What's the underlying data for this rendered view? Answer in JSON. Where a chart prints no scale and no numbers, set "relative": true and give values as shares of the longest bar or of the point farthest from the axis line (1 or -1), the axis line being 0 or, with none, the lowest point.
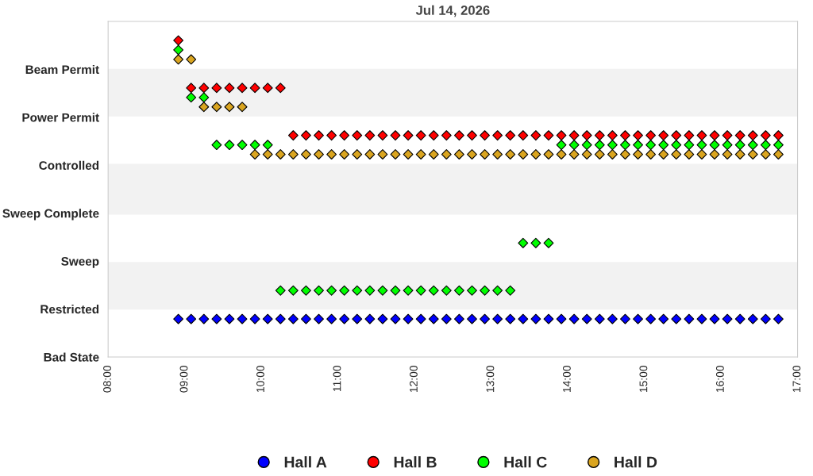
{
  "chart_data": {
    "type": "scatter",
    "title": "Jul 14, 2026",
    "relative": true,
    "x": [
      "2026-07-14T08:55",
      "2026-07-14T09:05",
      "2026-07-14T09:15",
      "2026-07-14T09:25",
      "2026-07-14T09:35",
      "2026-07-14T09:45",
      "2026-07-14T09:55",
      "2026-07-14T10:05",
      "2026-07-14T10:15",
      "2026-07-14T10:25",
      "2026-07-14T10:35",
      "2026-07-14T10:45",
      "2026-07-14T10:55",
      "2026-07-14T11:05",
      "2026-07-14T11:15",
      "2026-07-14T11:25",
      "2026-07-14T11:35",
      "2026-07-14T11:45",
      "2026-07-14T11:55",
      "2026-07-14T12:05",
      "2026-07-14T12:15",
      "2026-07-14T12:25",
      "2026-07-14T12:35",
      "2026-07-14T12:45",
      "2026-07-14T12:55",
      "2026-07-14T13:05",
      "2026-07-14T13:15",
      "2026-07-14T13:25",
      "2026-07-14T13:35",
      "2026-07-14T13:45",
      "2026-07-14T13:55",
      "2026-07-14T14:05",
      "2026-07-14T14:15",
      "2026-07-14T14:25",
      "2026-07-14T14:35",
      "2026-07-14T14:45",
      "2026-07-14T14:55",
      "2026-07-14T15:05",
      "2026-07-14T15:15",
      "2026-07-14T15:25",
      "2026-07-14T15:35",
      "2026-07-14T15:45",
      "2026-07-14T15:55",
      "2026-07-14T16:05",
      "2026-07-14T16:15",
      "2026-07-14T16:25",
      "2026-07-14T16:35",
      "2026-07-14T16:45"
    ],
    "y_categories": [
      "Beam Permit",
      "Power Permit",
      "Controlled",
      "Sweep Complete",
      "Sweep",
      "Restricted",
      "Bad State"
    ],
    "series": [
      {
        "name": "Hall A",
        "color": "#0000ff",
        "values": [
          0.12,
          0.12,
          0.12,
          0.12,
          0.12,
          0.12,
          0.12,
          0.12,
          0.12,
          0.12,
          0.12,
          0.12,
          0.12,
          0.12,
          0.12,
          0.12,
          0.12,
          0.12,
          0.12,
          0.12,
          0.12,
          0.12,
          0.12,
          0.12,
          0.12,
          0.12,
          0.12,
          0.12,
          0.12,
          0.12,
          0.12,
          0.12,
          0.12,
          0.12,
          0.12,
          0.12,
          0.12,
          0.12,
          0.12,
          0.12,
          0.12,
          0.12,
          0.12,
          0.12,
          0.12,
          0.12,
          0.12,
          0.12
        ]
      },
      {
        "name": "Hall B",
        "color": "#ff0000",
        "values": [
          1,
          0.85,
          0.85,
          0.85,
          0.85,
          0.85,
          0.85,
          0.85,
          0.85,
          0.7,
          0.7,
          0.7,
          0.7,
          0.7,
          0.7,
          0.7,
          0.7,
          0.7,
          0.7,
          0.7,
          0.7,
          0.7,
          0.7,
          0.7,
          0.7,
          0.7,
          0.7,
          0.7,
          0.7,
          0.7,
          0.7,
          0.7,
          0.7,
          0.7,
          0.7,
          0.7,
          0.7,
          0.7,
          0.7,
          0.7,
          0.7,
          0.7,
          0.7,
          0.7,
          0.7,
          0.7,
          0.7,
          0.7
        ]
      },
      {
        "name": "Hall C",
        "color": "#00ff00",
        "values": [
          0.97,
          0.82,
          0.82,
          0.67,
          0.67,
          0.67,
          0.67,
          0.67,
          0.21,
          0.21,
          0.21,
          0.21,
          0.21,
          0.21,
          0.21,
          0.21,
          0.21,
          0.21,
          0.21,
          0.21,
          0.21,
          0.21,
          0.21,
          0.21,
          0.21,
          0.21,
          0.21,
          0.36,
          0.36,
          0.36,
          0.67,
          0.67,
          0.67,
          0.67,
          0.67,
          0.67,
          0.67,
          0.67,
          0.67,
          0.67,
          0.67,
          0.67,
          0.67,
          0.67,
          0.67,
          0.67,
          0.67,
          0.67
        ]
      },
      {
        "name": "Hall D",
        "color": "#daa520",
        "values": [
          0.94,
          0.94,
          0.79,
          0.79,
          0.79,
          0.79,
          0.64,
          0.64,
          0.64,
          0.64,
          0.64,
          0.64,
          0.64,
          0.64,
          0.64,
          0.64,
          0.64,
          0.64,
          0.64,
          0.64,
          0.64,
          0.64,
          0.64,
          0.64,
          0.64,
          0.64,
          0.64,
          0.64,
          0.64,
          0.64,
          0.64,
          0.64,
          0.64,
          0.64,
          0.64,
          0.64,
          0.64,
          0.64,
          0.64,
          0.64,
          0.64,
          0.64,
          0.64,
          0.64,
          0.64,
          0.64,
          0.64,
          0.64
        ]
      }
    ],
    "xlim": [
      "2026-07-14T08:00",
      "2026-07-14T17:00"
    ],
    "xticks": [
      {
        "value": "2026-07-14T08:00",
        "label": "08:00"
      },
      {
        "value": "2026-07-14T09:00",
        "label": "09:00"
      },
      {
        "value": "2026-07-14T10:00",
        "label": "10:00"
      },
      {
        "value": "2026-07-14T11:00",
        "label": "11:00"
      },
      {
        "value": "2026-07-14T12:00",
        "label": "12:00"
      },
      {
        "value": "2026-07-14T13:00",
        "label": "13:00"
      },
      {
        "value": "2026-07-14T14:00",
        "label": "14:00"
      },
      {
        "value": "2026-07-14T15:00",
        "label": "15:00"
      },
      {
        "value": "2026-07-14T16:00",
        "label": "16:00"
      },
      {
        "value": "2026-07-14T17:00",
        "label": "17:00"
      }
    ],
    "bands": [
      {
        "axis": "y",
        "from": 0.15,
        "to": 0.3,
        "color": "#f2f2f2"
      },
      {
        "axis": "y",
        "from": 0.45,
        "to": 0.61,
        "color": "#f2f2f2"
      },
      {
        "axis": "y",
        "from": 0.76,
        "to": 0.91,
        "color": "#f2f2f2"
      }
    ],
    "grid": false,
    "legend": "bottom",
    "marker": "diamond"
  }
}
